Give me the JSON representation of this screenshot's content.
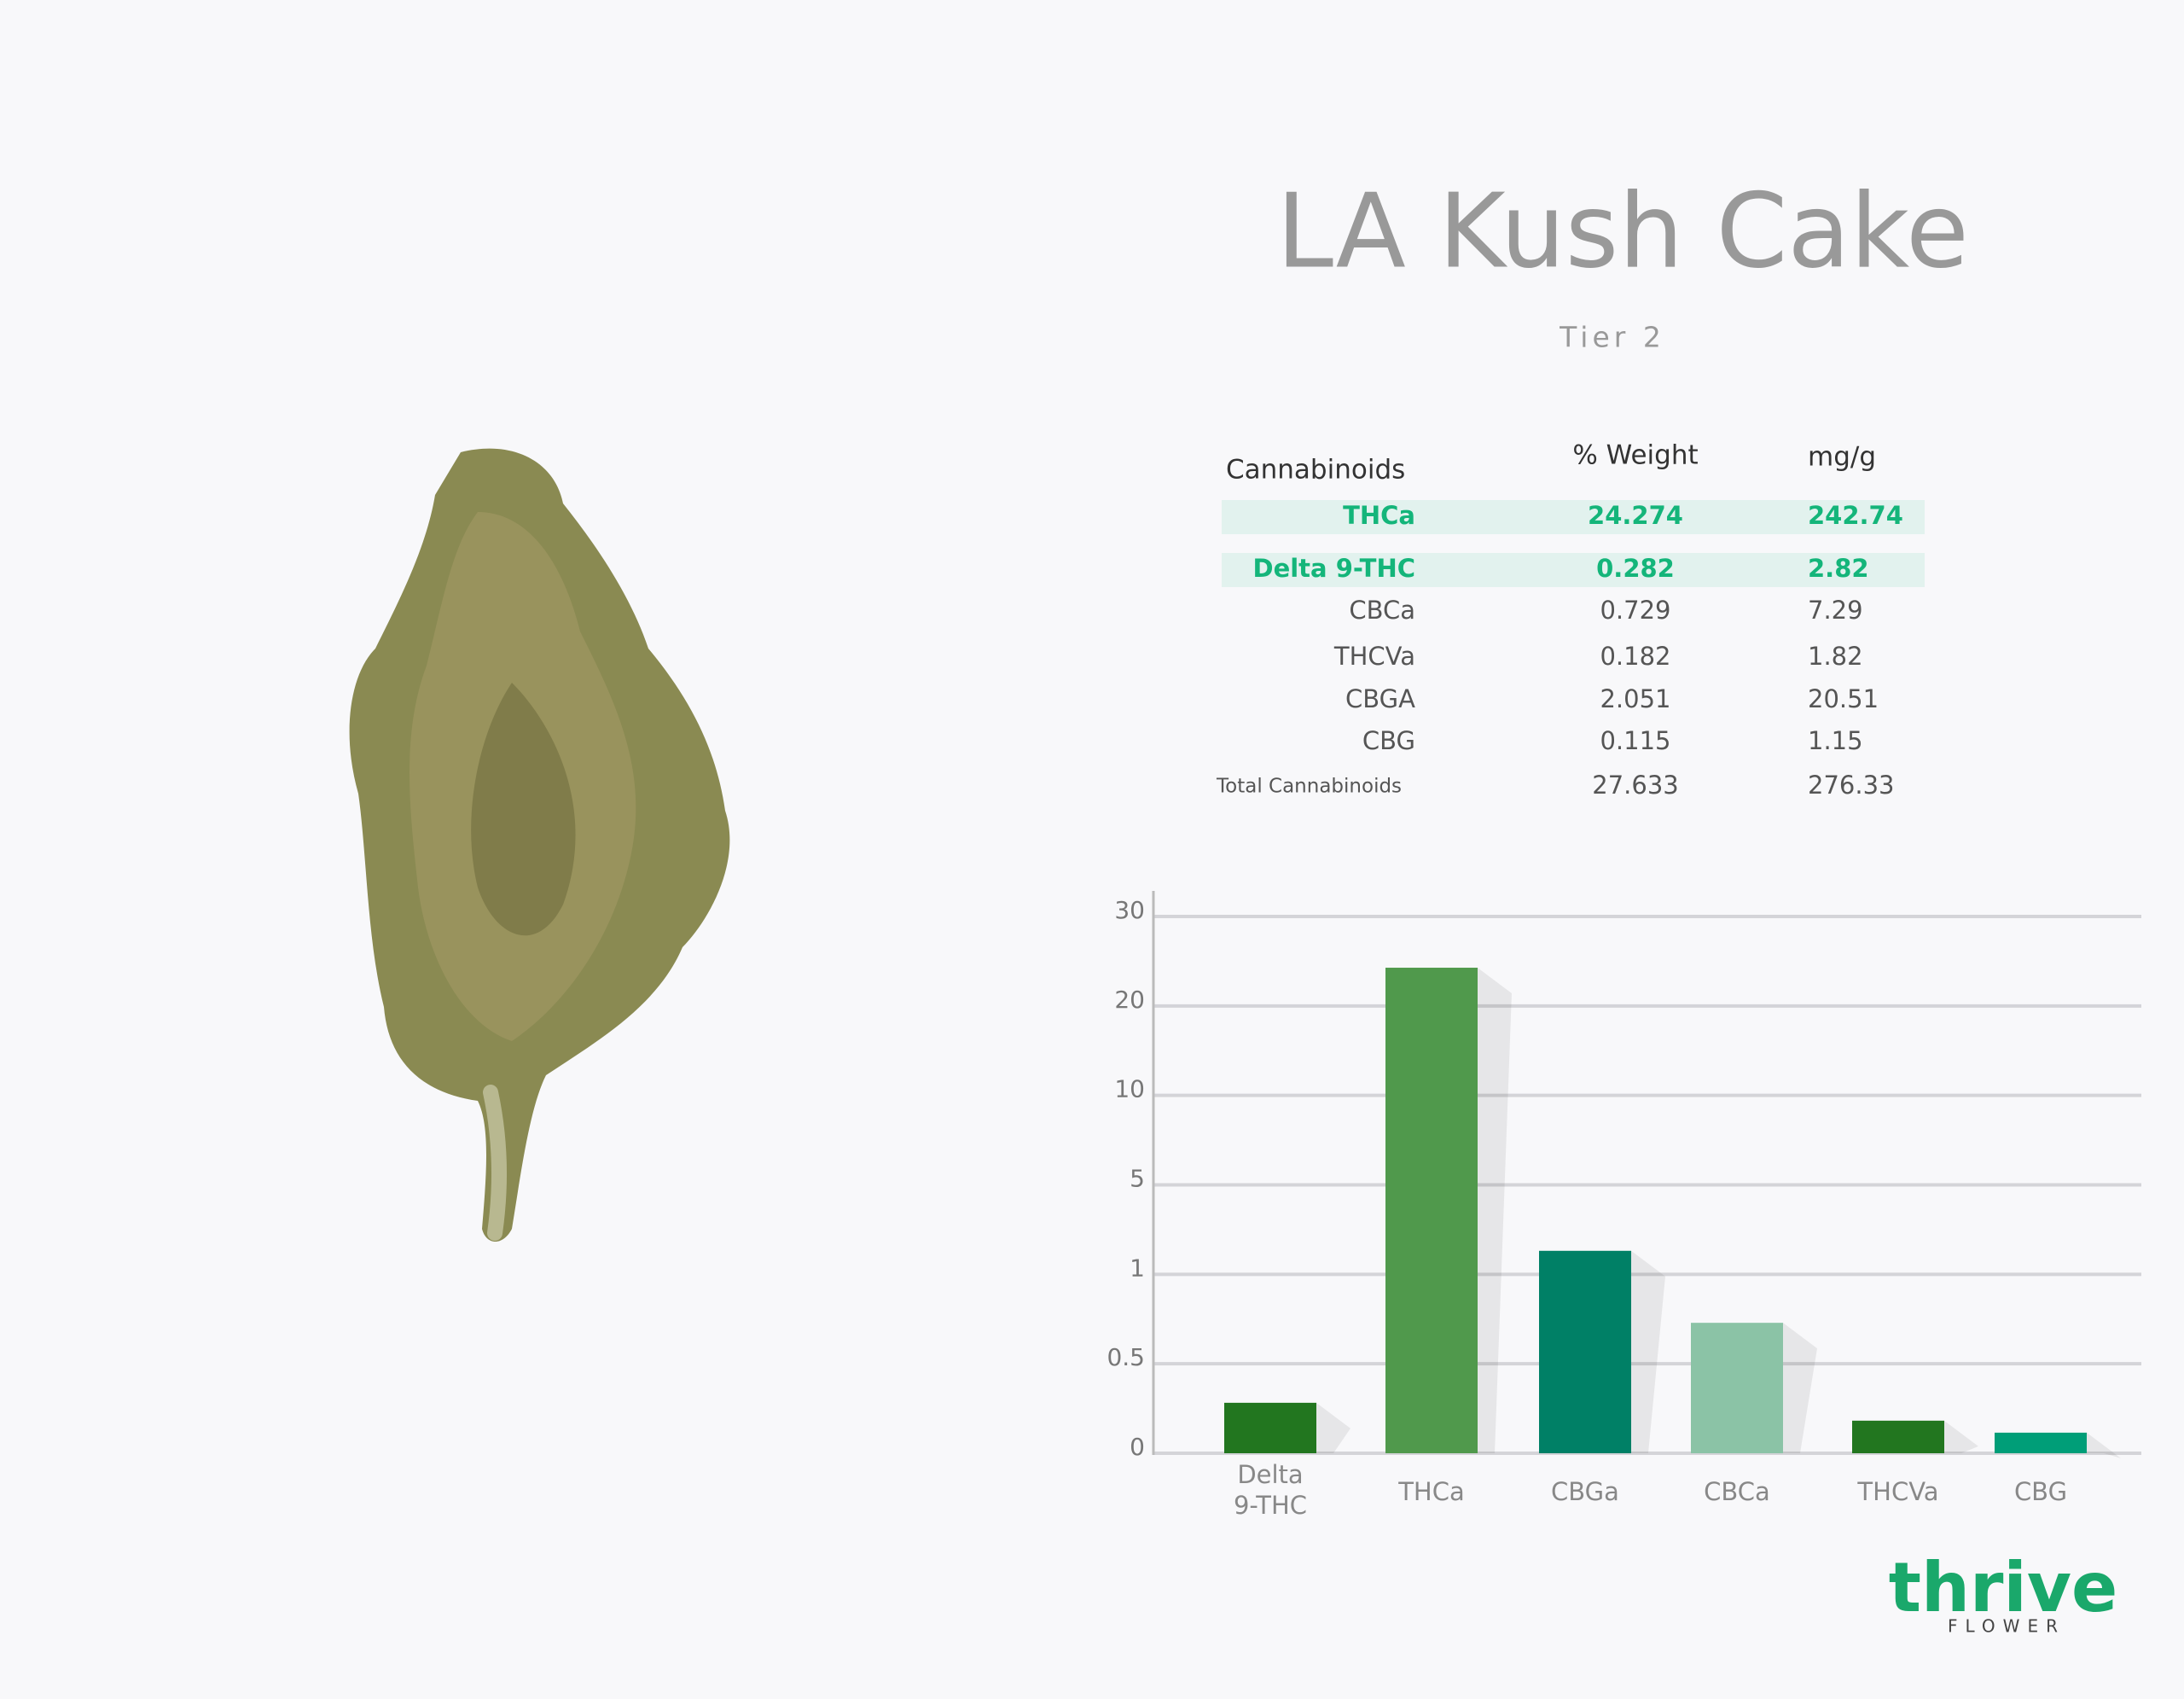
{
  "header": {
    "title": "LA Kush Cake",
    "subtitle": "Tier 2"
  },
  "table": {
    "columns": [
      "Cannabinoids",
      "% Weight",
      "mg/g"
    ],
    "rows": [
      {
        "cells": [
          "THCa",
          "24.274",
          "242.74"
        ],
        "highlight": true
      },
      {
        "cells": [
          "Delta 9-THC",
          "0.282",
          "2.82"
        ],
        "highlight": true
      },
      {
        "cells": [
          "CBCa",
          "0.729",
          "7.29"
        ]
      },
      {
        "cells": [
          "THCVa",
          "0.182",
          "1.82"
        ]
      },
      {
        "cells": [
          "CBGA",
          "2.051",
          "20.51"
        ]
      },
      {
        "cells": [
          "CBG",
          "0.115",
          "1.15"
        ]
      }
    ],
    "total": [
      "Total Cannabinoids",
      "27.633",
      "276.33"
    ]
  },
  "chart_data": {
    "type": "bar",
    "scale": "piecewise",
    "categories": [
      "Delta 9-THC",
      "THCa",
      "CBGa",
      "CBCa",
      "THCVa",
      "CBG"
    ],
    "values": [
      0.282,
      24.274,
      2.051,
      0.729,
      0.182,
      0.115
    ],
    "colors": [
      "#22761f",
      "#50994c",
      "#008066",
      "#8bc3a6",
      "#22761f",
      "#009e78"
    ],
    "ylim": [
      0,
      30
    ],
    "yticks": [
      0,
      0.5,
      1,
      5,
      10,
      20,
      30
    ],
    "grid": true
  },
  "logo": {
    "name": "thrive",
    "tagline": "FLOWER"
  }
}
